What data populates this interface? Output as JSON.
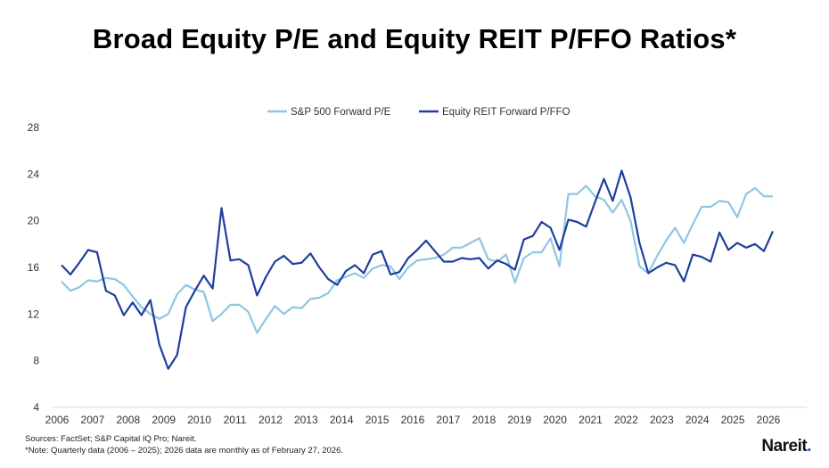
{
  "title": "Broad Equity P/E and Equity REIT P/FFO Ratios*",
  "sources": "Sources: FactSet; S&P Capital IQ Pro; Nareit.",
  "note": "*Note: Quarterly data (2006 – 2025); 2026 data are monthly as of February 27, 2026.",
  "logo": "Nareit",
  "chart_data": {
    "type": "line",
    "title": "",
    "xlabel": "",
    "ylabel": "",
    "xlim": [
      2006,
      2026
    ],
    "ylim": [
      4,
      28
    ],
    "x_ticks": [
      2006,
      2007,
      2008,
      2009,
      2010,
      2011,
      2012,
      2013,
      2014,
      2015,
      2016,
      2017,
      2018,
      2019,
      2020,
      2021,
      2022,
      2023,
      2024,
      2025,
      2026
    ],
    "y_ticks": [
      4,
      8,
      12,
      16,
      20,
      24,
      28
    ],
    "grid": false,
    "legend_position": "top",
    "series": [
      {
        "name": "S&P 500 Forward P/E",
        "color": "#8fc6e3",
        "values": [
          14.8,
          14.0,
          14.3,
          14.9,
          14.8,
          15.1,
          15.0,
          14.5,
          13.5,
          12.6,
          12.0,
          11.6,
          12.0,
          13.7,
          14.5,
          14.1,
          13.9,
          11.4,
          12.0,
          12.8,
          12.8,
          12.2,
          10.4,
          11.6,
          12.7,
          12.0,
          12.6,
          12.5,
          13.3,
          13.4,
          13.8,
          14.9,
          15.2,
          15.5,
          15.1,
          15.9,
          16.2,
          16.1,
          15.0,
          16.0,
          16.6,
          16.7,
          16.8,
          17.1,
          17.7,
          17.7,
          18.1,
          18.5,
          16.7,
          16.5,
          17.1,
          14.7,
          16.8,
          17.3,
          17.3,
          18.5,
          16.1,
          22.3,
          22.3,
          23.0,
          22.1,
          21.8,
          20.7,
          21.8,
          20.0,
          16.1,
          15.5,
          17.0,
          18.3,
          19.4,
          18.1,
          19.7,
          21.2,
          21.2,
          21.7,
          21.6,
          20.3,
          22.3,
          22.8,
          22.1,
          22.1
        ]
      },
      {
        "name": "Equity REIT Forward P/FFO",
        "color": "#1f3f9e",
        "values": [
          16.2,
          15.4,
          16.4,
          17.5,
          17.3,
          14.0,
          13.6,
          11.9,
          13.0,
          11.9,
          13.2,
          9.4,
          7.3,
          8.5,
          12.6,
          14.0,
          15.3,
          14.2,
          21.1,
          16.6,
          16.7,
          16.2,
          13.6,
          15.2,
          16.5,
          17.0,
          16.3,
          16.4,
          17.2,
          16.0,
          15.0,
          14.5,
          15.7,
          16.2,
          15.5,
          17.1,
          17.4,
          15.4,
          15.6,
          16.8,
          17.5,
          18.3,
          17.4,
          16.5,
          16.5,
          16.8,
          16.7,
          16.8,
          15.9,
          16.6,
          16.3,
          15.8,
          18.4,
          18.7,
          19.9,
          19.4,
          17.5,
          20.1,
          19.9,
          19.5,
          21.6,
          23.6,
          21.7,
          24.3,
          22.0,
          18.1,
          15.5,
          16.0,
          16.4,
          16.2,
          14.8,
          17.1,
          16.9,
          16.5,
          19.0,
          17.5,
          18.1,
          17.7,
          18.0,
          17.4,
          19.1
        ]
      }
    ]
  }
}
